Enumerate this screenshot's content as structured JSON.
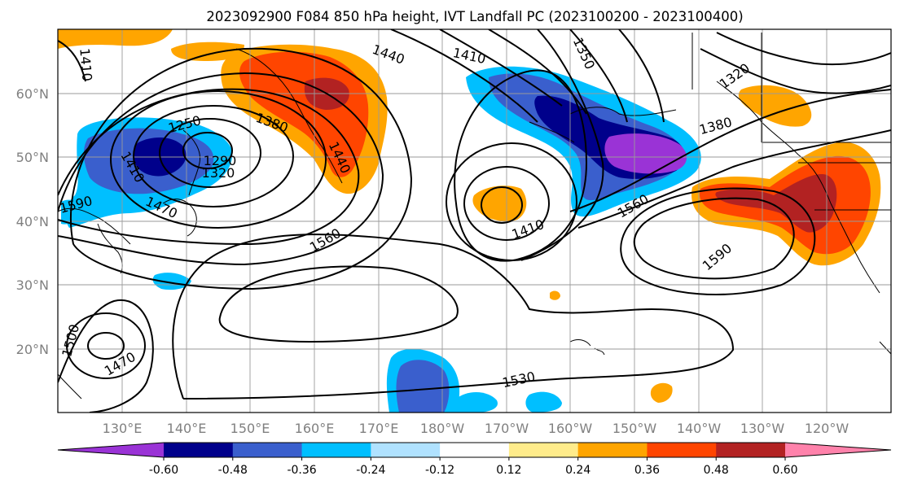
{
  "title": "2023092900 F084 850 hPa height, IVT Landfall PC (2023100200 - 2023100400)",
  "lat_ticks": [
    "60°N",
    "50°N",
    "40°N",
    "30°N",
    "20°N"
  ],
  "lon_ticks": [
    "130°E",
    "140°E",
    "150°E",
    "160°E",
    "170°E",
    "180°W",
    "170°W",
    "160°W",
    "150°W",
    "140°W",
    "130°W",
    "120°W"
  ],
  "contour_labels": [
    "1410",
    "1440",
    "1410",
    "1350",
    "1320",
    "1250",
    "1380",
    "1290",
    "1320",
    "1410",
    "1440",
    "1380",
    "1470",
    "1560",
    "1410",
    "1560",
    "1590",
    "1500",
    "1470",
    "1530",
    "1590"
  ],
  "colorbar": {
    "levels": [
      "-0.60",
      "-0.48",
      "-0.36",
      "-0.24",
      "-0.12",
      "0.12",
      "0.24",
      "0.36",
      "0.48",
      "0.60"
    ],
    "colors": [
      "#9a33d6",
      "#00008b",
      "#3a5fcd",
      "#00bfff",
      "#b0e2ff",
      "#ffffff",
      "#ffec8b",
      "#ffa500",
      "#ff4500",
      "#b22222",
      "#ff82ab"
    ]
  },
  "colors": {
    "purple": "#9a33d6",
    "navy": "#00008b",
    "royal": "#3a5fcd",
    "sky": "#00bfff",
    "lightblue": "#b0e2ff",
    "yellow": "#ffec8b",
    "orange": "#ffa500",
    "redorange": "#ff4500",
    "firebrick": "#b22222",
    "pink": "#ff82ab"
  }
}
